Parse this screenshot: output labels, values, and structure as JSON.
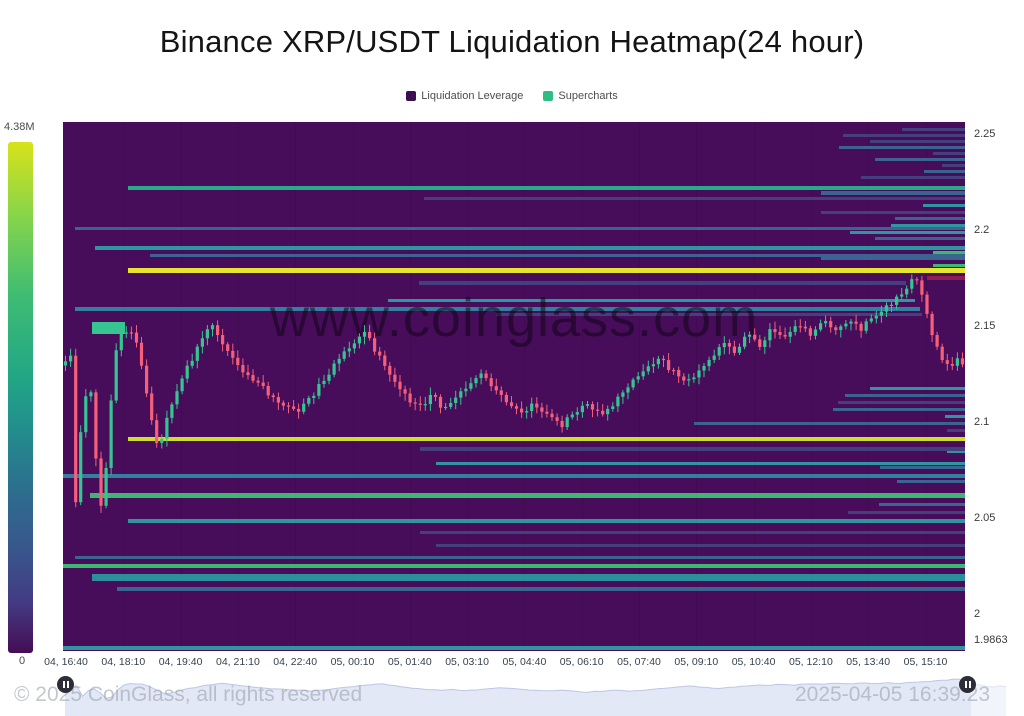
{
  "title": "Binance XRP/USDT Liquidation Heatmap(24 hour)",
  "legend": [
    {
      "label": "Liquidation Leverage",
      "color": "#3a1052"
    },
    {
      "label": "Supercharts",
      "color": "#2ebd85"
    }
  ],
  "colorbar": {
    "max_label": "4.38M",
    "min_label": "0",
    "stops": [
      {
        "pct": 0,
        "color": "#d8e219"
      },
      {
        "pct": 15,
        "color": "#84d44b"
      },
      {
        "pct": 30,
        "color": "#3fbc73"
      },
      {
        "pct": 45,
        "color": "#23a884"
      },
      {
        "pct": 55,
        "color": "#21918c"
      },
      {
        "pct": 68,
        "color": "#2c6e8e"
      },
      {
        "pct": 80,
        "color": "#39568c"
      },
      {
        "pct": 90,
        "color": "#433b84"
      },
      {
        "pct": 100,
        "color": "#440d54"
      }
    ]
  },
  "watermark": "www.coinglass.com",
  "footer": {
    "copyright": "© 2025 CoinGlass, all rights reserved",
    "timestamp": "2025-04-05 16:39:23"
  },
  "axes": {
    "x_labels": [
      "04, 16:40",
      "04, 18:10",
      "04, 19:40",
      "04, 21:10",
      "04, 22:40",
      "05, 00:10",
      "05, 01:40",
      "05, 03:10",
      "05, 04:40",
      "05, 06:10",
      "05, 07:40",
      "05, 09:10",
      "05, 10:40",
      "05, 12:10",
      "05, 13:40",
      "05, 15:10"
    ],
    "y_labels": [
      {
        "text": "2.25",
        "price": 2.25
      },
      {
        "text": "2.2",
        "price": 2.2
      },
      {
        "text": "2.15",
        "price": 2.15
      },
      {
        "text": "2.1",
        "price": 2.1
      },
      {
        "text": "2.05",
        "price": 2.05
      },
      {
        "text": "2",
        "price": 2.0
      },
      {
        "text": "1.9863",
        "price": 1.9863
      }
    ],
    "price_top": 2.2562,
    "price_bottom": 1.9805
  },
  "colors": {
    "background": "#470d5a",
    "candle_up": "#36c590",
    "candle_down": "#f4607a",
    "yellow": "#e6e431",
    "yellow_green": "#cfdd2e",
    "green": "#3cb873",
    "green_teal": "#2aa88a",
    "teal": "#2f96a0",
    "teal_thick": "#2e8f9c",
    "blue": "#3b6490",
    "blue_teal": "#357f9e",
    "faint": "#453f7e",
    "crimson": "#8e1e52"
  },
  "chart_data": {
    "type": "heatmap",
    "title": "Binance XRP/USDT Liquidation Heatmap(24 hour)",
    "colorbar_max": "4.38M",
    "colorbar_min": "0",
    "x_range": [
      "04, 16:40",
      "05, 16:30"
    ],
    "y_range": [
      1.9863,
      2.25
    ],
    "liquidation_lines": [
      {
        "price": 2.2219,
        "start": 0.072,
        "end": 1,
        "color": "green_teal",
        "t": 3.5
      },
      {
        "price": 2.219,
        "start": 0.84,
        "end": 1,
        "color": "blue",
        "t": 4
      },
      {
        "price": 2.2162,
        "start": 0.4,
        "end": 1,
        "color": "faint",
        "t": 3
      },
      {
        "price": 2.2005,
        "start": 0.013,
        "end": 1,
        "color": "blue",
        "t": 3
      },
      {
        "price": 2.1953,
        "start": 0.9,
        "end": 1,
        "color": "blue",
        "t": 3
      },
      {
        "price": 2.1906,
        "start": 0.035,
        "end": 1,
        "color": "teal",
        "t": 4
      },
      {
        "price": 2.188,
        "start": 0.965,
        "end": 1,
        "color": "green",
        "t": 3
      },
      {
        "price": 2.1865,
        "start": 0.096,
        "end": 1,
        "color": "blue",
        "t": 3
      },
      {
        "price": 2.1849,
        "start": 0.84,
        "end": 1,
        "color": "blue",
        "t": 3
      },
      {
        "price": 2.1812,
        "start": 0.965,
        "end": 1,
        "color": "green",
        "t": 3
      },
      {
        "price": 2.1786,
        "start": 0.072,
        "end": 1,
        "color": "yellow",
        "t": 5
      },
      {
        "price": 2.175,
        "start": 0.958,
        "end": 1,
        "color": "crimson",
        "t": 4
      },
      {
        "price": 2.1724,
        "start": 0.395,
        "end": 0.935,
        "color": "faint",
        "t": 3.5
      },
      {
        "price": 2.163,
        "start": 0.36,
        "end": 0.945,
        "color": "teal",
        "t": 3
      },
      {
        "price": 2.1588,
        "start": 0.013,
        "end": 0.95,
        "color": "blue_teal",
        "t": 3.5
      },
      {
        "price": 2.156,
        "start": 0.48,
        "end": 0.952,
        "color": "faint",
        "t": 3
      },
      {
        "price": 2.149,
        "start": 0.032,
        "end": 0.069,
        "color": "candle_up",
        "t": 12
      },
      {
        "price": 2.2525,
        "start": 0.93,
        "end": 1,
        "color": "faint",
        "t": 3
      },
      {
        "price": 2.2493,
        "start": 0.865,
        "end": 1,
        "color": "faint",
        "t": 3
      },
      {
        "price": 2.2462,
        "start": 0.895,
        "end": 1,
        "color": "faint",
        "t": 3
      },
      {
        "price": 2.243,
        "start": 0.86,
        "end": 1,
        "color": "blue",
        "t": 3
      },
      {
        "price": 2.24,
        "start": 0.965,
        "end": 1,
        "color": "faint",
        "t": 3
      },
      {
        "price": 2.2368,
        "start": 0.9,
        "end": 1,
        "color": "blue",
        "t": 3
      },
      {
        "price": 2.2336,
        "start": 0.975,
        "end": 1,
        "color": "faint",
        "t": 3
      },
      {
        "price": 2.2305,
        "start": 0.955,
        "end": 1,
        "color": "blue",
        "t": 3
      },
      {
        "price": 2.2273,
        "start": 0.885,
        "end": 1,
        "color": "faint",
        "t": 3
      },
      {
        "price": 2.2126,
        "start": 0.953,
        "end": 1,
        "color": "teal",
        "t": 3
      },
      {
        "price": 2.2089,
        "start": 0.84,
        "end": 1,
        "color": "faint",
        "t": 3
      },
      {
        "price": 2.2058,
        "start": 0.922,
        "end": 1,
        "color": "blue",
        "t": 3
      },
      {
        "price": 2.2021,
        "start": 0.918,
        "end": 1,
        "color": "teal",
        "t": 3
      },
      {
        "price": 2.1984,
        "start": 0.872,
        "end": 1,
        "color": "teal",
        "t": 3
      },
      {
        "price": 2.1172,
        "start": 0.895,
        "end": 1,
        "color": "teal",
        "t": 3
      },
      {
        "price": 2.1135,
        "start": 0.867,
        "end": 1,
        "color": "blue",
        "t": 3
      },
      {
        "price": 2.1099,
        "start": 0.859,
        "end": 1,
        "color": "faint",
        "t": 3
      },
      {
        "price": 2.1063,
        "start": 0.854,
        "end": 1,
        "color": "blue",
        "t": 3
      },
      {
        "price": 2.1026,
        "start": 0.978,
        "end": 1,
        "color": "teal",
        "t": 3
      },
      {
        "price": 2.099,
        "start": 0.7,
        "end": 1,
        "color": "blue",
        "t": 3
      },
      {
        "price": 2.0953,
        "start": 0.98,
        "end": 1,
        "color": "faint",
        "t": 3
      },
      {
        "price": 2.0844,
        "start": 0.98,
        "end": 1,
        "color": "teal",
        "t": 3
      },
      {
        "price": 2.076,
        "start": 0.906,
        "end": 1,
        "color": "blue",
        "t": 3
      },
      {
        "price": 2.0688,
        "start": 0.925,
        "end": 1,
        "color": "blue",
        "t": 3
      },
      {
        "price": 2.0567,
        "start": 0.905,
        "end": 1,
        "color": "blue",
        "t": 3
      },
      {
        "price": 2.0526,
        "start": 0.87,
        "end": 1,
        "color": "faint",
        "t": 3
      },
      {
        "price": 2.0911,
        "start": 0.072,
        "end": 1,
        "color": "yellow_green",
        "t": 4.5
      },
      {
        "price": 2.0859,
        "start": 0.396,
        "end": 1,
        "color": "faint",
        "t": 4
      },
      {
        "price": 2.0781,
        "start": 0.414,
        "end": 1,
        "color": "teal",
        "t": 3
      },
      {
        "price": 2.0719,
        "start": 0.0,
        "end": 1,
        "color": "blue_teal",
        "t": 4
      },
      {
        "price": 2.0615,
        "start": 0.03,
        "end": 1,
        "color": "green",
        "t": 5
      },
      {
        "price": 2.0484,
        "start": 0.072,
        "end": 1,
        "color": "teal",
        "t": 3.5
      },
      {
        "price": 2.0422,
        "start": 0.396,
        "end": 1,
        "color": "faint",
        "t": 3
      },
      {
        "price": 2.0354,
        "start": 0.414,
        "end": 1,
        "color": "faint",
        "t": 3
      },
      {
        "price": 2.0292,
        "start": 0.013,
        "end": 1,
        "color": "blue",
        "t": 3.5
      },
      {
        "price": 2.025,
        "start": 0.0,
        "end": 1,
        "color": "green",
        "t": 4
      },
      {
        "price": 2.0187,
        "start": 0.032,
        "end": 1,
        "color": "teal_thick",
        "t": 7
      },
      {
        "price": 2.013,
        "start": 0.06,
        "end": 1,
        "color": "blue",
        "t": 4
      },
      {
        "price": 1.9822,
        "start": 0.0,
        "end": 1,
        "color": "teal",
        "t": 4.5
      }
    ],
    "price_path": [
      [
        0.0,
        2.128
      ],
      [
        0.008,
        2.132
      ],
      [
        0.013,
        2.136
      ],
      [
        0.016,
        2.052
      ],
      [
        0.02,
        2.085
      ],
      [
        0.026,
        2.11
      ],
      [
        0.033,
        2.118
      ],
      [
        0.04,
        2.078
      ],
      [
        0.047,
        2.048
      ],
      [
        0.053,
        2.095
      ],
      [
        0.058,
        2.12
      ],
      [
        0.064,
        2.146
      ],
      [
        0.075,
        2.148
      ],
      [
        0.085,
        2.142
      ],
      [
        0.094,
        2.12
      ],
      [
        0.105,
        2.088
      ],
      [
        0.113,
        2.092
      ],
      [
        0.122,
        2.108
      ],
      [
        0.132,
        2.12
      ],
      [
        0.143,
        2.13
      ],
      [
        0.155,
        2.142
      ],
      [
        0.168,
        2.15
      ],
      [
        0.18,
        2.14
      ],
      [
        0.195,
        2.13
      ],
      [
        0.21,
        2.122
      ],
      [
        0.228,
        2.116
      ],
      [
        0.245,
        2.11
      ],
      [
        0.262,
        2.105
      ],
      [
        0.278,
        2.112
      ],
      [
        0.292,
        2.122
      ],
      [
        0.308,
        2.132
      ],
      [
        0.322,
        2.14
      ],
      [
        0.337,
        2.147
      ],
      [
        0.352,
        2.135
      ],
      [
        0.368,
        2.122
      ],
      [
        0.385,
        2.112
      ],
      [
        0.4,
        2.108
      ],
      [
        0.412,
        2.114
      ],
      [
        0.424,
        2.106
      ],
      [
        0.438,
        2.112
      ],
      [
        0.452,
        2.118
      ],
      [
        0.466,
        2.125
      ],
      [
        0.48,
        2.118
      ],
      [
        0.495,
        2.11
      ],
      [
        0.51,
        2.104
      ],
      [
        0.525,
        2.109
      ],
      [
        0.54,
        2.103
      ],
      [
        0.555,
        2.098
      ],
      [
        0.57,
        2.104
      ],
      [
        0.585,
        2.109
      ],
      [
        0.6,
        2.104
      ],
      [
        0.615,
        2.11
      ],
      [
        0.632,
        2.119
      ],
      [
        0.648,
        2.127
      ],
      [
        0.663,
        2.133
      ],
      [
        0.678,
        2.127
      ],
      [
        0.692,
        2.12
      ],
      [
        0.706,
        2.126
      ],
      [
        0.72,
        2.133
      ],
      [
        0.735,
        2.14
      ],
      [
        0.748,
        2.136
      ],
      [
        0.762,
        2.145
      ],
      [
        0.776,
        2.14
      ],
      [
        0.79,
        2.149
      ],
      [
        0.804,
        2.143
      ],
      [
        0.818,
        2.151
      ],
      [
        0.832,
        2.146
      ],
      [
        0.846,
        2.153
      ],
      [
        0.86,
        2.148
      ],
      [
        0.874,
        2.152
      ],
      [
        0.888,
        2.148
      ],
      [
        0.9,
        2.155
      ],
      [
        0.913,
        2.159
      ],
      [
        0.926,
        2.164
      ],
      [
        0.938,
        2.17
      ],
      [
        0.947,
        2.176
      ],
      [
        0.955,
        2.166
      ],
      [
        0.962,
        2.152
      ],
      [
        0.97,
        2.142
      ],
      [
        0.978,
        2.133
      ],
      [
        0.986,
        2.127
      ],
      [
        0.993,
        2.135
      ],
      [
        1.0,
        2.129
      ]
    ]
  }
}
